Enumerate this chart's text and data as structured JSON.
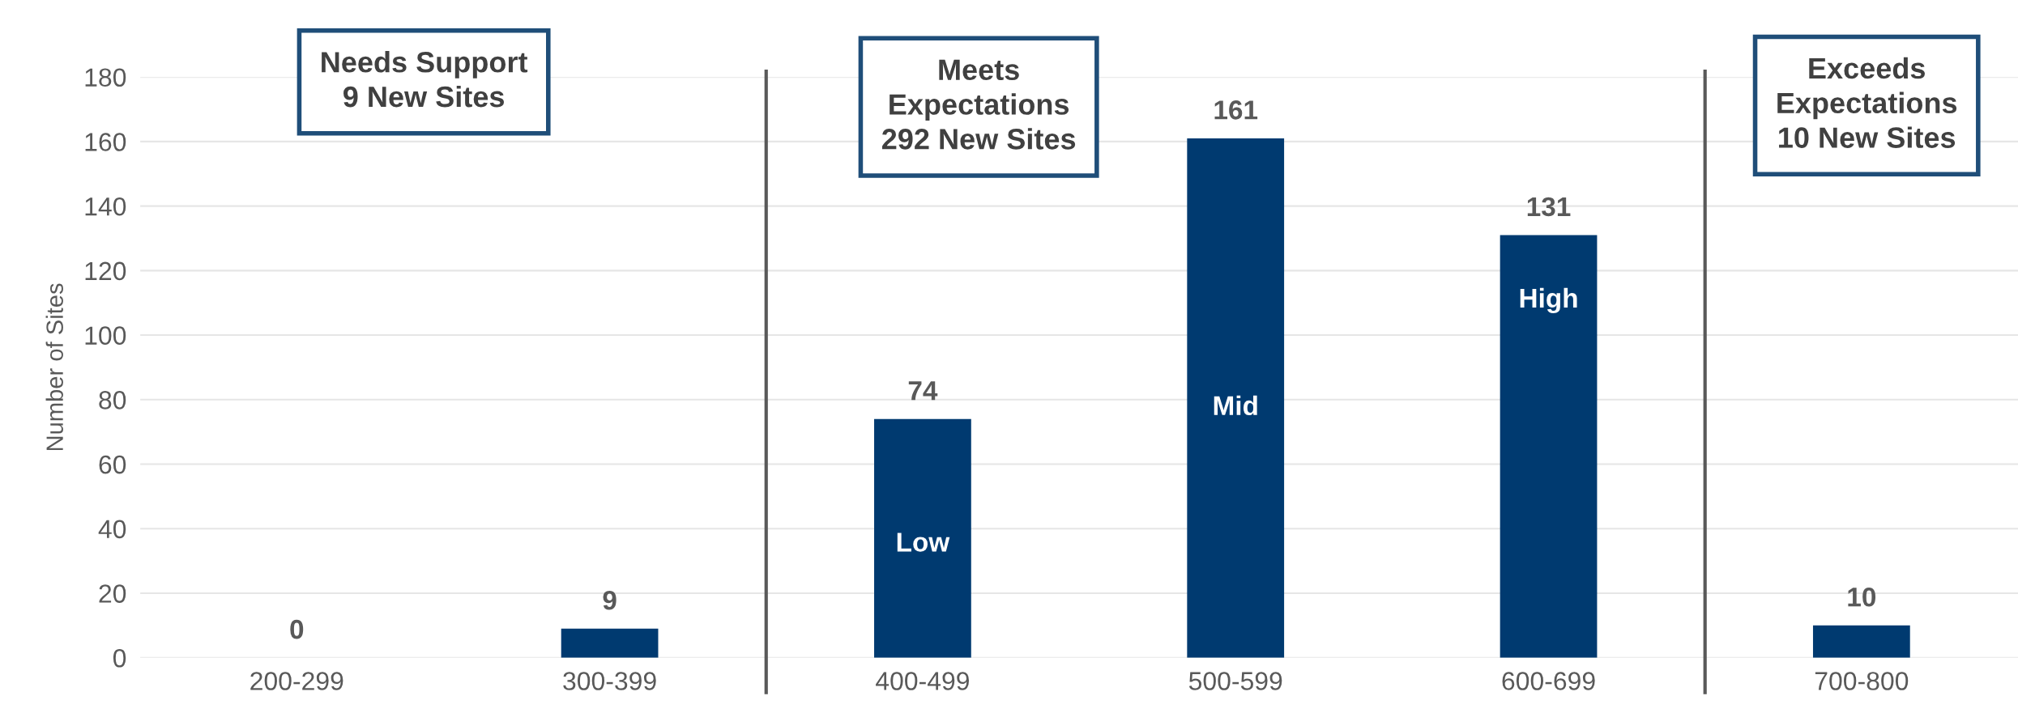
{
  "chart_data": {
    "type": "bar",
    "ylabel": "Number of Sites",
    "categories": [
      "200-299",
      "300-399",
      "400-499",
      "500-599",
      "600-699",
      "700-800"
    ],
    "values": [
      0,
      9,
      74,
      161,
      131,
      10
    ],
    "color": "#003a70",
    "ylim": [
      0,
      180
    ],
    "yticks": [
      0,
      20,
      40,
      60,
      80,
      100,
      120,
      140,
      160,
      180
    ],
    "grid": "y",
    "data_labels": true,
    "annotations": [
      "Needs Support\n9 New Sites",
      "Meets\nExpectations\n292 New Sites",
      "Exceeds\nExpectations\n10 New Sites",
      "Low",
      "Mid",
      "High"
    ]
  }
}
